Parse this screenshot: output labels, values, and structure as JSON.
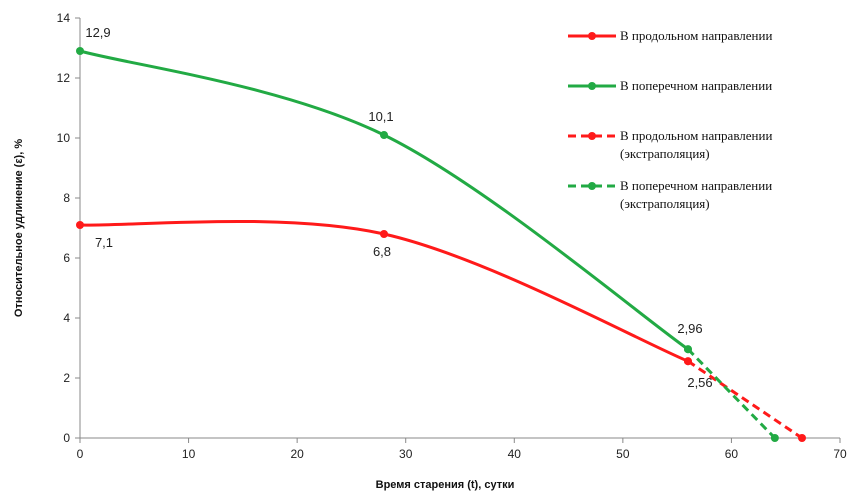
{
  "chart_data": {
    "type": "line",
    "xlabel": "Время старения (t), сутки",
    "ylabel": "Относительное удлинение (ε), %",
    "xlim": [
      0,
      70
    ],
    "ylim": [
      0,
      14
    ],
    "xticks": [
      0,
      10,
      20,
      30,
      40,
      50,
      60,
      70
    ],
    "yticks": [
      0,
      2,
      4,
      6,
      8,
      10,
      12,
      14
    ],
    "grid": false,
    "legend_position": "right",
    "series": [
      {
        "name": "В продольном направлении",
        "color": "#ff1a1a",
        "style": "solid",
        "points": [
          [
            0,
            7.1
          ],
          [
            28,
            6.8
          ],
          [
            56,
            2.56
          ]
        ],
        "labels": [
          "7,1",
          "6,8",
          "2,56"
        ]
      },
      {
        "name": "В поперечном направлении",
        "color": "#22aa44",
        "style": "solid",
        "points": [
          [
            0,
            12.9
          ],
          [
            28,
            10.1
          ],
          [
            56,
            2.96
          ]
        ],
        "labels": [
          "12,9",
          "10,1",
          "2,96"
        ]
      },
      {
        "name": "В продольном направлении (экстраполяция)",
        "legend_lines": [
          "В продольном направлении",
          "(экстраполяция)"
        ],
        "color": "#ff1a1a",
        "style": "dashed",
        "points": [
          [
            56,
            2.56
          ],
          [
            66.5,
            0
          ]
        ]
      },
      {
        "name": "В поперечном направлении (экстраполяция)",
        "legend_lines": [
          "В поперечном направлении",
          "(экстраполяция)"
        ],
        "color": "#22aa44",
        "style": "dashed",
        "points": [
          [
            56,
            2.96
          ],
          [
            64,
            0
          ]
        ]
      }
    ]
  }
}
